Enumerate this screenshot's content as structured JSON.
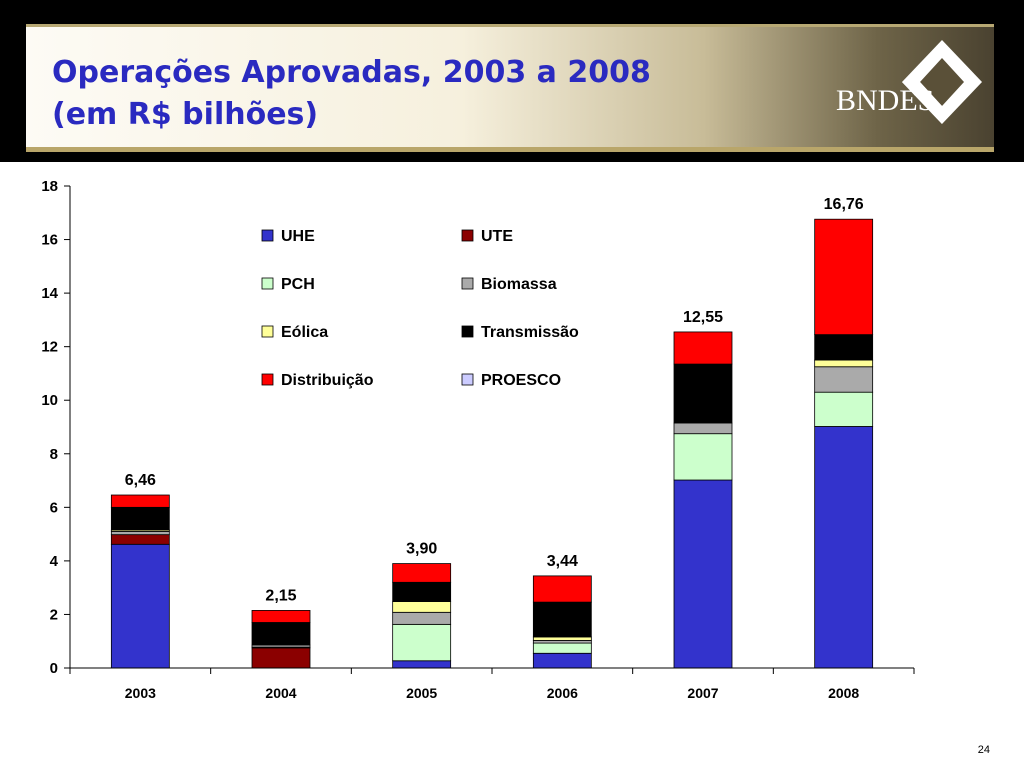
{
  "slide": {
    "title_line1": "Operações Aprovadas, 2003 a 2008",
    "title_line2": "(em R$ bilhões)",
    "logo_text": "BNDES",
    "page_number": "24"
  },
  "chart_data": {
    "type": "bar",
    "stacked": true,
    "title": "",
    "xlabel": "",
    "ylabel": "",
    "ylim": [
      0,
      18
    ],
    "yticks": [
      0,
      2,
      4,
      6,
      8,
      10,
      12,
      14,
      16,
      18
    ],
    "grid": false,
    "legend_position": "top-center",
    "categories": [
      "2003",
      "2004",
      "2005",
      "2006",
      "2007",
      "2008"
    ],
    "totals": [
      6.46,
      2.15,
      3.9,
      3.44,
      12.55,
      16.76
    ],
    "total_labels": [
      "6,46",
      "2,15",
      "3,90",
      "3,44",
      "12,55",
      "16,76"
    ],
    "series": [
      {
        "name": "UHE",
        "color": "#3333cc",
        "values": [
          4.62,
          0.0,
          0.27,
          0.55,
          7.02,
          9.02
        ]
      },
      {
        "name": "UTE",
        "color": "#8b0000",
        "values": [
          0.36,
          0.75,
          0.0,
          0.0,
          0.0,
          0.0
        ]
      },
      {
        "name": "PCH",
        "color": "#ccffcc",
        "values": [
          0.0,
          0.03,
          1.36,
          0.38,
          1.73,
          1.28
        ]
      },
      {
        "name": "Biomassa",
        "color": "#aaaaaa",
        "values": [
          0.12,
          0.08,
          0.45,
          0.1,
          0.4,
          0.95
        ]
      },
      {
        "name": "Eólica",
        "color": "#ffff99",
        "values": [
          0.05,
          0.0,
          0.4,
          0.13,
          0.0,
          0.25
        ]
      },
      {
        "name": "Transmissão",
        "color": "#000000",
        "values": [
          0.85,
          0.84,
          0.72,
          1.3,
          2.2,
          0.95
        ]
      },
      {
        "name": "Distribuição",
        "color": "#ff0000",
        "values": [
          0.46,
          0.45,
          0.7,
          0.98,
          1.2,
          4.31
        ]
      },
      {
        "name": "PROESCO",
        "color": "#ccccff",
        "values": [
          0.0,
          0.0,
          0.0,
          0.0,
          0.0,
          0.0
        ]
      }
    ]
  }
}
